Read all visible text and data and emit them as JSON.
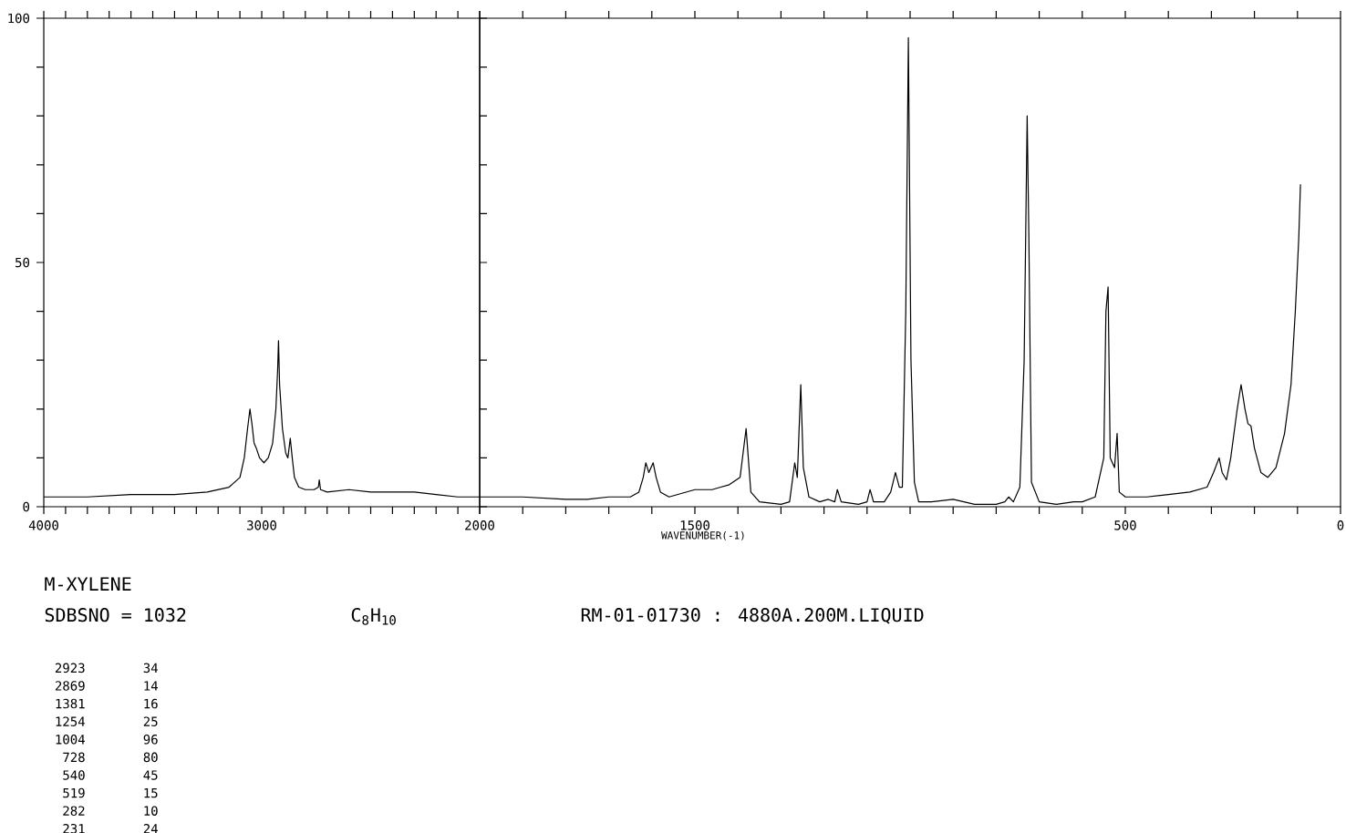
{
  "chart_data": [
    {
      "type": "line",
      "xlim": [
        4000,
        2000
      ],
      "ylim": [
        0,
        100
      ],
      "tick_labels": "xy",
      "xticks": [
        4000,
        {
          "value": 3900,
          "label": null
        },
        {
          "value": 3800,
          "label": null
        },
        {
          "value": 3700,
          "label": null
        },
        {
          "value": 3600,
          "label": null
        },
        {
          "value": 3500,
          "label": null
        },
        {
          "value": 3400,
          "label": null
        },
        {
          "value": 3300,
          "label": null
        },
        {
          "value": 3200,
          "label": null
        },
        {
          "value": 3100,
          "label": null
        },
        3000,
        {
          "value": 2900,
          "label": null
        },
        {
          "value": 2800,
          "label": null
        },
        {
          "value": 2700,
          "label": null
        },
        {
          "value": 2600,
          "label": null
        },
        {
          "value": 2500,
          "label": null
        },
        {
          "value": 2400,
          "label": null
        },
        {
          "value": 2300,
          "label": null
        },
        {
          "value": 2200,
          "label": null
        },
        {
          "value": 2100,
          "label": null
        },
        2000
      ],
      "yticks": [
        0,
        {
          "value": 10,
          "label": null
        },
        {
          "value": 20,
          "label": null
        },
        {
          "value": 30,
          "label": null
        },
        {
          "value": 40,
          "label": null
        },
        50,
        {
          "value": 60,
          "label": null
        },
        {
          "value": 70,
          "label": null
        },
        {
          "value": 80,
          "label": null
        },
        {
          "value": 90,
          "label": null
        },
        100
      ],
      "series": [
        {
          "color": "#000000",
          "x": [
            4000,
            3800,
            3600,
            3400,
            3250,
            3150,
            3100,
            3080,
            3065,
            3054,
            3045,
            3035,
            3025,
            3010,
            2990,
            2970,
            2950,
            2935,
            2927,
            2923,
            2918,
            2905,
            2890,
            2880,
            2869,
            2860,
            2850,
            2830,
            2800,
            2760,
            2740,
            2736,
            2730,
            2700,
            2600,
            2500,
            2400,
            2300,
            2200,
            2100,
            2000
          ],
          "values": [
            2,
            2,
            2.5,
            2.5,
            3,
            4,
            6,
            10,
            16,
            20,
            17,
            13,
            12,
            10,
            9,
            10,
            13,
            20,
            28,
            34,
            25,
            16,
            11,
            10,
            14,
            10,
            6,
            4,
            3.5,
            3.5,
            4,
            5.5,
            3.5,
            3,
            3.5,
            3,
            3,
            3,
            2.5,
            2,
            2
          ]
        }
      ],
      "annotations": [
        "M-XYLENE",
        "SDBSNO = 1032",
        "C$_{8}$H$_{10}$",
        "RM-01-01730 : 4880A.200M.LIQUID",
        "2923",
        "34",
        "2869",
        "14",
        "1381",
        "16",
        "1254",
        "25",
        "1004",
        "96",
        "728",
        "80",
        "540",
        "45",
        "519",
        "15",
        "282",
        "10",
        "231",
        "24"
      ]
    },
    {
      "type": "line",
      "xlabel": "WAVENUMBER(-1)",
      "xlim": [
        2000,
        0
      ],
      "ylim": [
        0,
        100
      ],
      "tick_labels": "x",
      "xticks": [
        {
          "value": 2000,
          "label": null
        },
        {
          "value": 1900,
          "label": null
        },
        {
          "value": 1800,
          "label": null
        },
        {
          "value": 1700,
          "label": null
        },
        {
          "value": 1600,
          "label": null
        },
        1500,
        {
          "value": 1400,
          "label": null
        },
        {
          "value": 1300,
          "label": null
        },
        {
          "value": 1200,
          "label": null
        },
        {
          "value": 1100,
          "label": null
        },
        {
          "value": 1000,
          "label": null
        },
        {
          "value": 900,
          "label": null
        },
        {
          "value": 800,
          "label": null
        },
        {
          "value": 700,
          "label": null
        },
        {
          "value": 600,
          "label": null
        },
        500,
        {
          "value": 400,
          "label": null
        },
        {
          "value": 300,
          "label": null
        },
        {
          "value": 200,
          "label": null
        },
        {
          "value": 100,
          "label": null
        },
        0
      ],
      "series": [
        {
          "color": "#000000",
          "x": [
            2000,
            1900,
            1800,
            1750,
            1700,
            1650,
            1630,
            1620,
            1614,
            1607,
            1597,
            1590,
            1580,
            1560,
            1500,
            1460,
            1440,
            1420,
            1395,
            1381,
            1370,
            1350,
            1300,
            1280,
            1268,
            1262,
            1254,
            1248,
            1235,
            1210,
            1190,
            1175,
            1169,
            1160,
            1120,
            1100,
            1093,
            1085,
            1060,
            1045,
            1034,
            1025,
            1018,
            1010,
            1004,
            998,
            990,
            980,
            950,
            900,
            850,
            800,
            780,
            771,
            760,
            745,
            735,
            728,
            724,
            718,
            700,
            660,
            620,
            600,
            570,
            550,
            545,
            540,
            535,
            525,
            519,
            514,
            500,
            450,
            400,
            350,
            310,
            295,
            282,
            275,
            265,
            255,
            240,
            231,
            222,
            215,
            208,
            200,
            185,
            169,
            150,
            130,
            115,
            105,
            97,
            93
          ],
          "values": [
            2,
            2,
            1.5,
            1.5,
            2,
            2,
            3,
            6,
            9,
            7,
            9,
            6,
            3,
            2,
            3.5,
            3.5,
            4,
            4.5,
            6,
            16,
            3,
            1,
            0.5,
            1,
            9,
            6,
            25,
            8,
            2,
            1,
            1.5,
            1,
            3.5,
            1,
            0.5,
            1,
            3.5,
            1,
            1,
            3,
            7,
            4,
            4,
            40,
            96,
            30,
            5,
            1,
            1,
            1.5,
            0.5,
            0.5,
            1,
            2,
            1,
            4,
            30,
            80,
            55,
            5,
            1,
            0.5,
            1,
            1,
            2,
            10,
            40,
            45,
            10,
            8,
            15,
            3,
            2,
            2,
            2.5,
            3,
            4,
            7,
            10,
            7,
            5.5,
            10,
            20,
            25,
            20,
            17,
            16.5,
            12,
            7,
            6,
            8,
            15,
            25,
            40,
            55,
            66
          ]
        }
      ]
    }
  ]
}
